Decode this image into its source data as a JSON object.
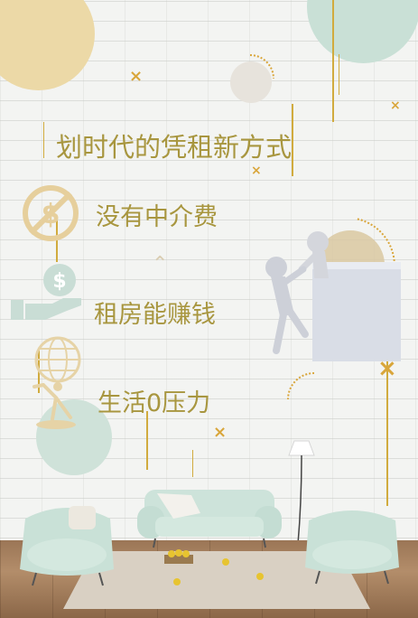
{
  "headline": "划时代的凭租新方式",
  "features": [
    {
      "text": "没有中介费",
      "icon": "no-fee-icon"
    },
    {
      "text": "租房能赚钱",
      "icon": "money-hand-icon"
    },
    {
      "text": "生活0压力",
      "icon": "atlas-globe-icon"
    }
  ],
  "colors": {
    "gold": "#a8963f",
    "line": "#d1ab3e",
    "mint": "#cfe5dc",
    "beige": "#ecd9a7",
    "wall": "#f3f4f2"
  }
}
